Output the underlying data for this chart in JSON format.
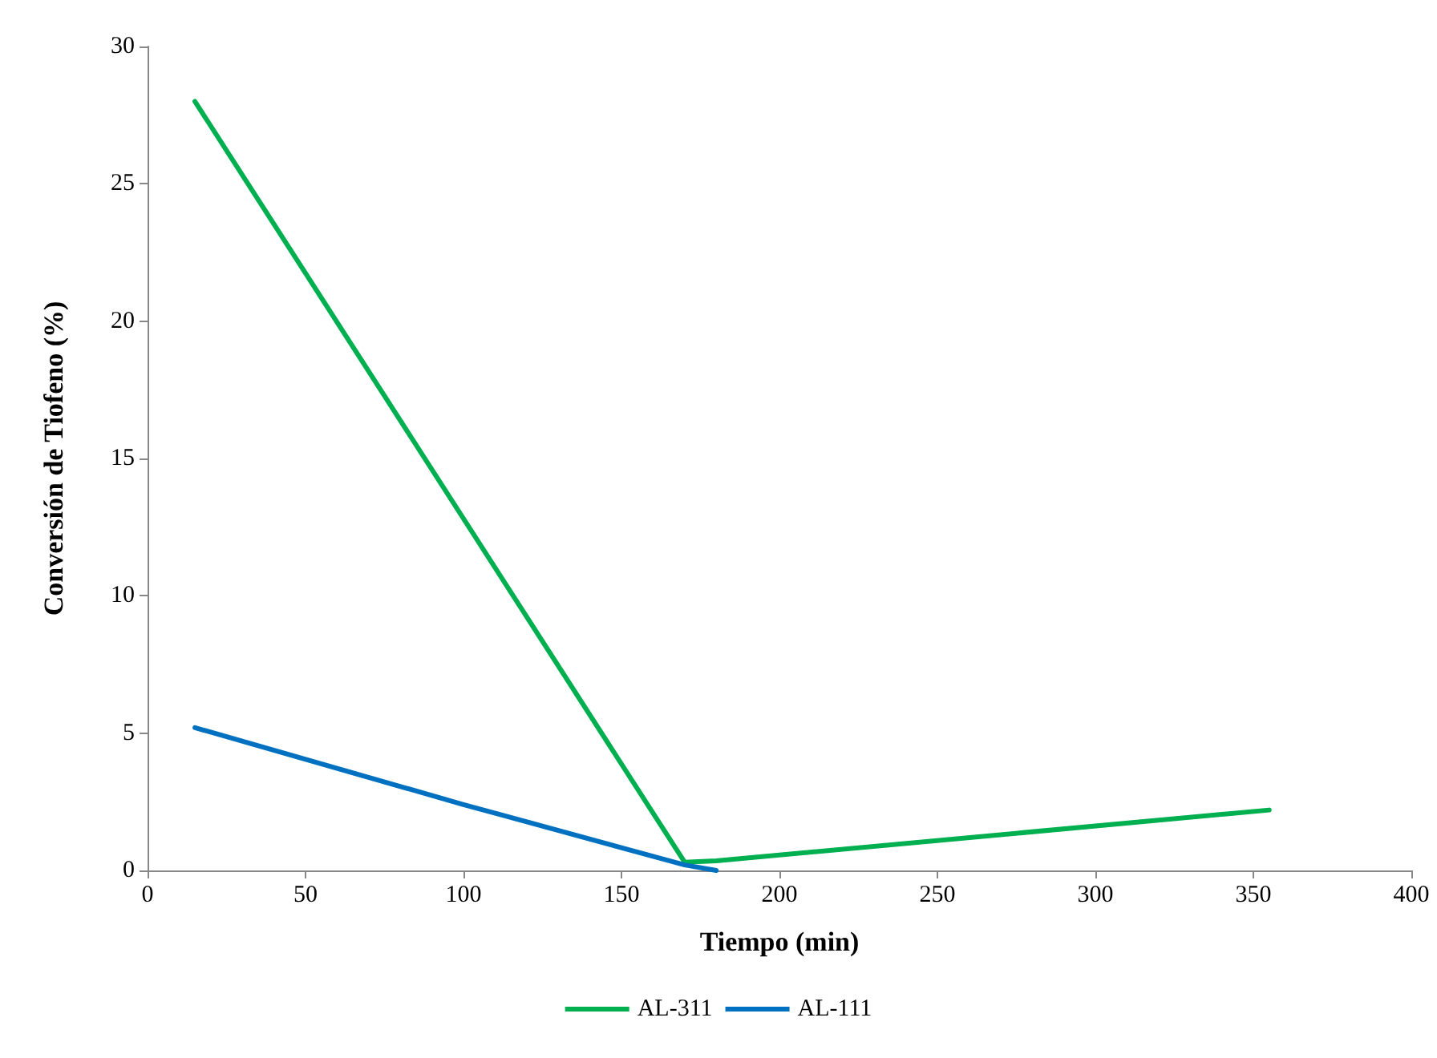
{
  "chart_data": {
    "type": "line",
    "xlabel": "Tiempo (min)",
    "ylabel": "Conversión de Tiofeno (%)",
    "xlim": [
      0,
      400
    ],
    "xticks": [
      0,
      50,
      100,
      150,
      200,
      250,
      300,
      350,
      400
    ],
    "ylim": [
      0,
      30
    ],
    "yticks": [
      0,
      5,
      10,
      15,
      20,
      25,
      30
    ],
    "grid": false,
    "legend": "bottom",
    "marker": "none",
    "line_style": "solid",
    "series": [
      {
        "name": "AL-311",
        "color": "#00b050",
        "x": [
          15,
          170,
          180,
          355
        ],
        "values": [
          28,
          0.3,
          0.35,
          2.2
        ]
      },
      {
        "name": "AL-111",
        "color": "#0070c0",
        "x": [
          15,
          100,
          170,
          180
        ],
        "values": [
          5.2,
          2.4,
          0.2,
          0
        ]
      }
    ]
  }
}
